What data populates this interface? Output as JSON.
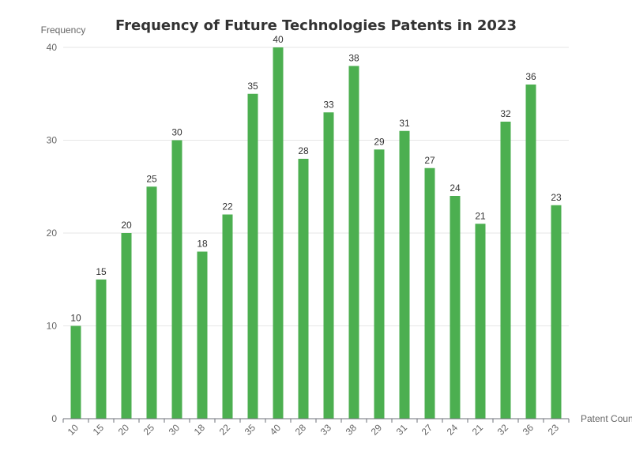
{
  "chart_data": {
    "type": "bar",
    "title": "Frequency of Future Technologies Patents in 2023",
    "xlabel": "Patent Count",
    "ylabel": "Frequency",
    "categories": [
      "10",
      "15",
      "20",
      "25",
      "30",
      "18",
      "22",
      "35",
      "40",
      "28",
      "33",
      "38",
      "29",
      "31",
      "27",
      "24",
      "21",
      "32",
      "36",
      "23"
    ],
    "values": [
      10,
      15,
      20,
      25,
      30,
      18,
      22,
      35,
      40,
      28,
      33,
      38,
      29,
      31,
      27,
      24,
      21,
      32,
      36,
      23
    ],
    "ylim": [
      0,
      40
    ],
    "yticks": [
      0,
      10,
      20,
      30,
      40
    ],
    "grid": true,
    "legend": "none",
    "bar_color": "#4caf50"
  }
}
